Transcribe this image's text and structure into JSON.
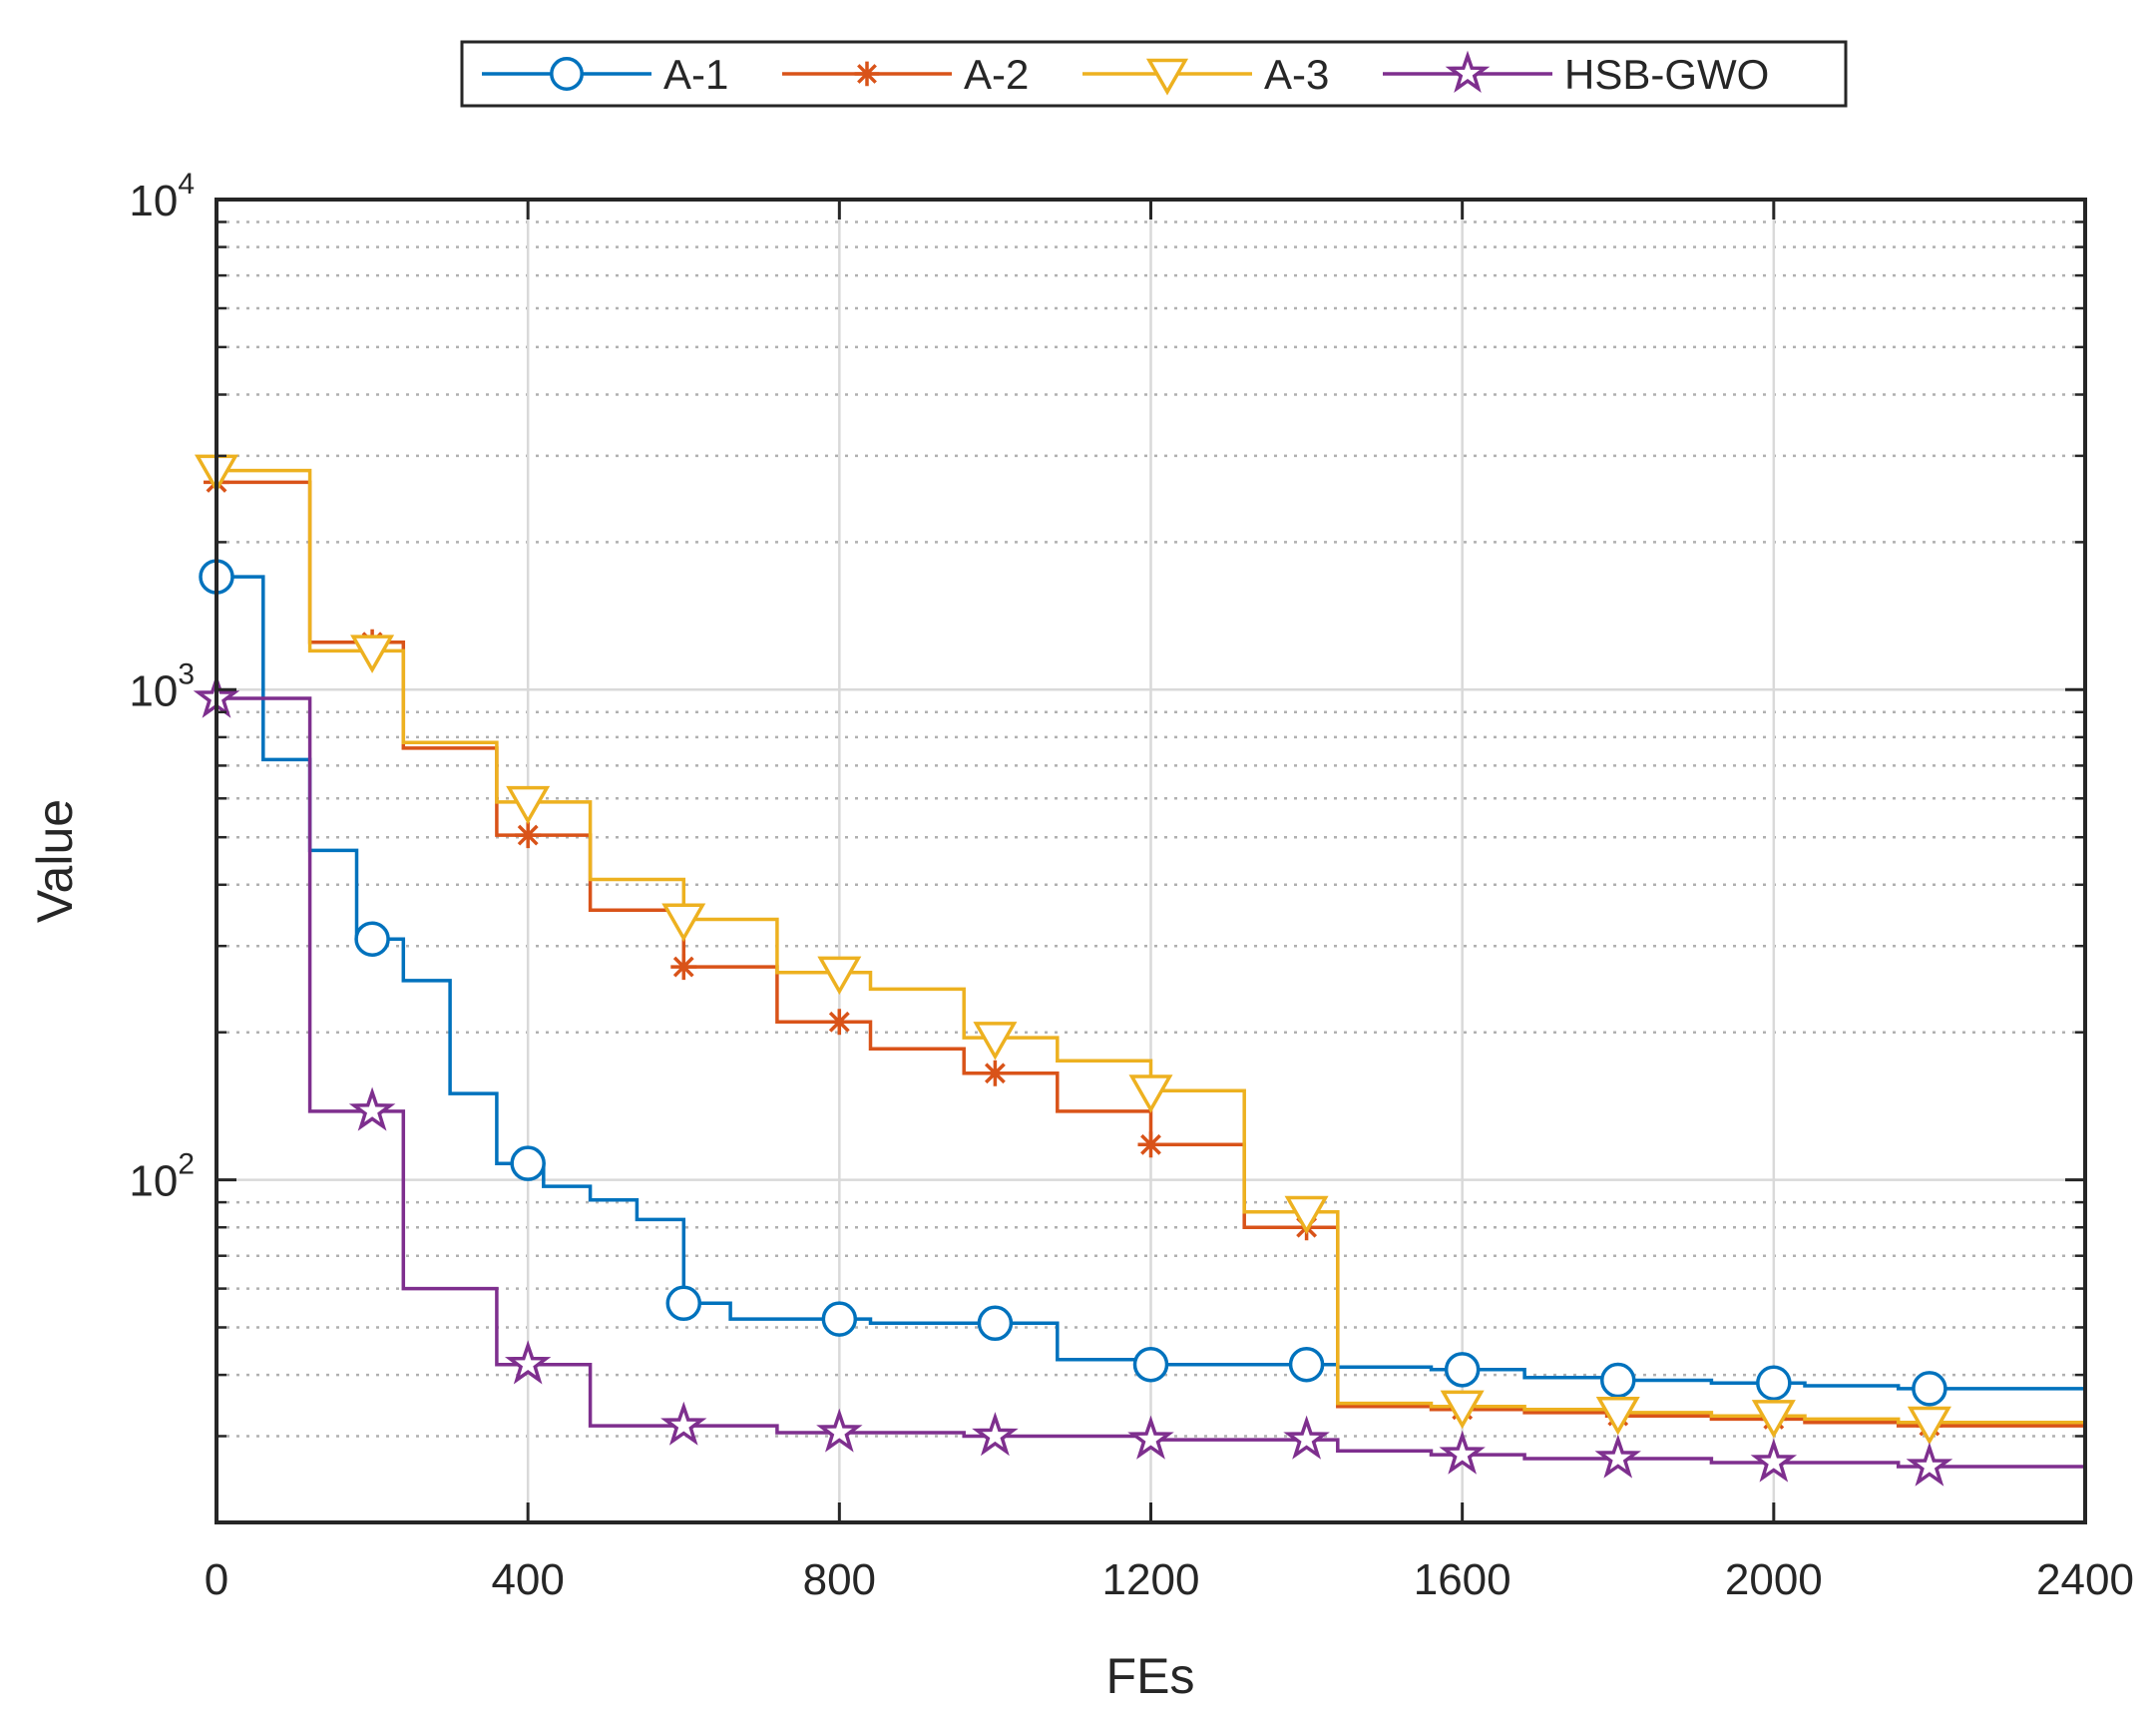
{
  "chart_data": {
    "type": "line",
    "step": true,
    "title": "",
    "xlabel": "FEs",
    "ylabel": "Value",
    "xlim": [
      0,
      2400
    ],
    "ylim": [
      20,
      10000
    ],
    "yscale": "log",
    "grid": true,
    "legend_position": "top-center",
    "xticks": [
      0,
      400,
      800,
      1200,
      1600,
      2000,
      2400
    ],
    "xtick_labels": [
      "0",
      "400",
      "800",
      "1200",
      "1600",
      "2000",
      "2400"
    ],
    "yticks": [
      100,
      1000,
      10000
    ],
    "ytick_labels": [
      {
        "base": "10",
        "exp": "2"
      },
      {
        "base": "10",
        "exp": "3"
      },
      {
        "base": "10",
        "exp": "4"
      }
    ],
    "series": [
      {
        "name": "A-1",
        "color": "#0072BD",
        "marker": "circle",
        "steps": [
          [
            0,
            1700
          ],
          [
            60,
            720
          ],
          [
            120,
            470
          ],
          [
            180,
            310
          ],
          [
            240,
            255
          ],
          [
            300,
            150
          ],
          [
            360,
            108
          ],
          [
            420,
            97
          ],
          [
            480,
            91
          ],
          [
            540,
            83
          ],
          [
            600,
            56
          ],
          [
            660,
            52
          ],
          [
            840,
            51
          ],
          [
            1080,
            43
          ],
          [
            1200,
            42
          ],
          [
            1440,
            41.5
          ],
          [
            1560,
            41
          ],
          [
            1680,
            39.5
          ],
          [
            1800,
            39
          ],
          [
            1920,
            38.5
          ],
          [
            2040,
            38
          ],
          [
            2160,
            37.5
          ],
          [
            2400,
            37
          ]
        ],
        "markers_x": [
          0,
          200,
          400,
          600,
          800,
          1000,
          1200,
          1400,
          1600,
          1800,
          2000,
          2200
        ]
      },
      {
        "name": "A-2",
        "color": "#D95319",
        "marker": "asterisk",
        "steps": [
          [
            0,
            2650
          ],
          [
            120,
            1250
          ],
          [
            240,
            760
          ],
          [
            360,
            505
          ],
          [
            480,
            355
          ],
          [
            600,
            272
          ],
          [
            720,
            210
          ],
          [
            840,
            185
          ],
          [
            960,
            165
          ],
          [
            1080,
            138
          ],
          [
            1200,
            118
          ],
          [
            1320,
            80
          ],
          [
            1440,
            34.5
          ],
          [
            1560,
            34
          ],
          [
            1680,
            33.5
          ],
          [
            1800,
            33
          ],
          [
            1920,
            32.5
          ],
          [
            2040,
            32
          ],
          [
            2160,
            31.5
          ],
          [
            2400,
            31.5
          ]
        ],
        "markers_x": [
          0,
          200,
          400,
          600,
          800,
          1000,
          1200,
          1400,
          1600,
          1800,
          2000,
          2200
        ]
      },
      {
        "name": "A-3",
        "color": "#EDB120",
        "marker": "triangle-down",
        "steps": [
          [
            0,
            2800
          ],
          [
            120,
            1200
          ],
          [
            240,
            780
          ],
          [
            360,
            590
          ],
          [
            480,
            410
          ],
          [
            600,
            340
          ],
          [
            720,
            265
          ],
          [
            840,
            245
          ],
          [
            960,
            195
          ],
          [
            1080,
            175
          ],
          [
            1200,
            152
          ],
          [
            1320,
            86
          ],
          [
            1440,
            35
          ],
          [
            1560,
            34.5
          ],
          [
            1680,
            34
          ],
          [
            1800,
            33.5
          ],
          [
            1920,
            33
          ],
          [
            2040,
            32.5
          ],
          [
            2160,
            32
          ],
          [
            2400,
            31.5
          ]
        ],
        "markers_x": [
          0,
          200,
          400,
          600,
          800,
          1000,
          1200,
          1400,
          1600,
          1800,
          2000,
          2200
        ]
      },
      {
        "name": "HSB-GWO",
        "color": "#7E2F8E",
        "marker": "pentagram",
        "steps": [
          [
            0,
            960
          ],
          [
            120,
            138
          ],
          [
            240,
            60
          ],
          [
            360,
            42
          ],
          [
            480,
            31.5
          ],
          [
            720,
            30.5
          ],
          [
            960,
            30
          ],
          [
            1200,
            29.5
          ],
          [
            1440,
            28
          ],
          [
            1560,
            27.5
          ],
          [
            1680,
            27
          ],
          [
            1800,
            27
          ],
          [
            1920,
            26.5
          ],
          [
            2040,
            26.5
          ],
          [
            2160,
            26
          ],
          [
            2400,
            25.5
          ]
        ],
        "markers_x": [
          0,
          200,
          400,
          600,
          800,
          1000,
          1200,
          1400,
          1600,
          1800,
          2000,
          2200
        ]
      }
    ]
  }
}
